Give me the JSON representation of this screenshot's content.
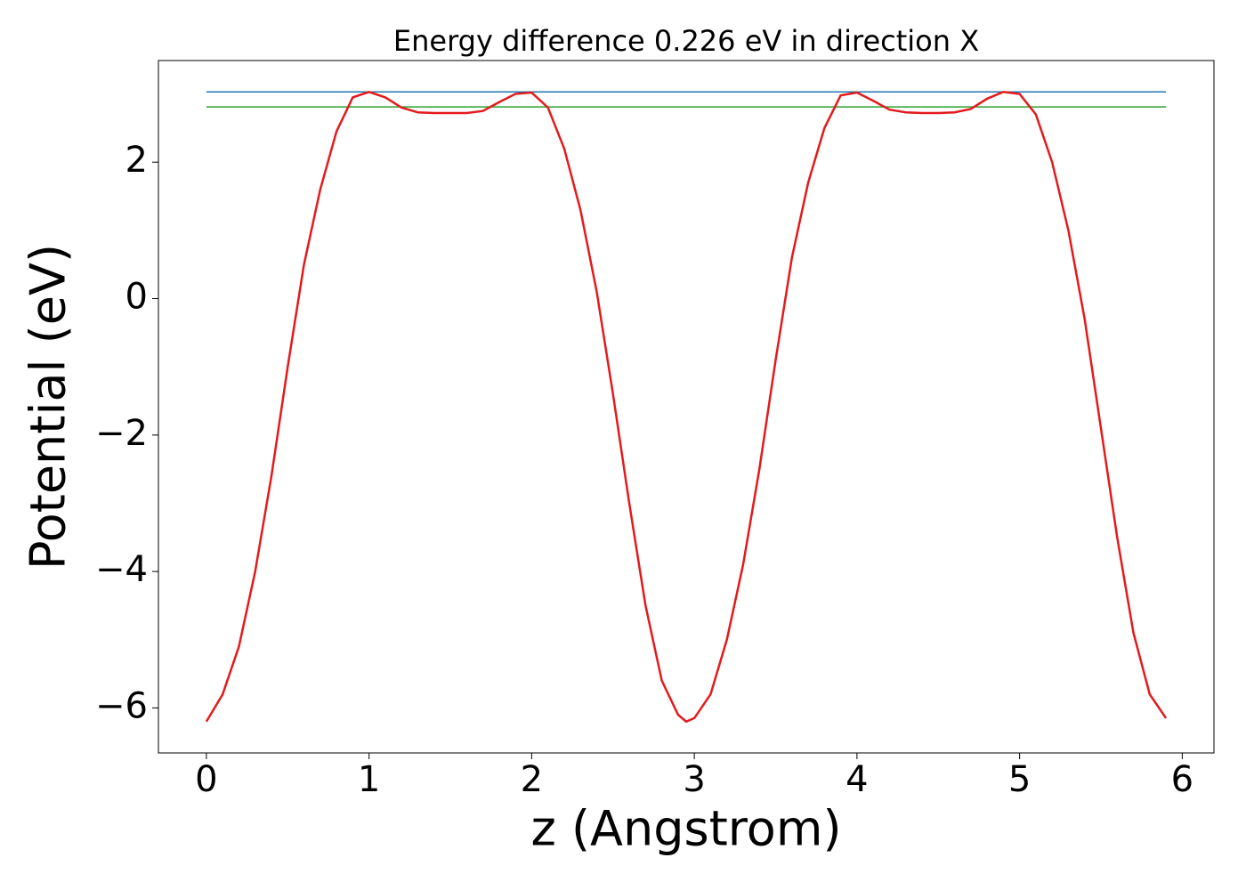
{
  "chart_data": {
    "type": "line",
    "title": "Energy difference 0.226 eV in direction X",
    "xlabel": "z (Angstrom)",
    "ylabel": "Potential (eV)",
    "xlim": [
      -0.295,
      6.195
    ],
    "ylim": [
      -6.66,
      3.49
    ],
    "xticks": [
      0,
      1,
      2,
      3,
      4,
      5,
      6
    ],
    "yticks": [
      {
        "value": -6,
        "label": "−6"
      },
      {
        "value": -4,
        "label": "−4"
      },
      {
        "value": -2,
        "label": "−2"
      },
      0,
      2
    ],
    "grid": false,
    "series": [
      {
        "color": "#e41a1c",
        "x": [
          0,
          0.1,
          0.2,
          0.3,
          0.4,
          0.5,
          0.6,
          0.7,
          0.8,
          0.9,
          1.0,
          1.1,
          1.2,
          1.3,
          1.4,
          1.5,
          1.6,
          1.7,
          1.8,
          1.9,
          2.0,
          2.1,
          2.2,
          2.3,
          2.4,
          2.5,
          2.6,
          2.7,
          2.8,
          2.9,
          2.95,
          3.0,
          3.1,
          3.2,
          3.3,
          3.4,
          3.5,
          3.6,
          3.7,
          3.8,
          3.9,
          4.0,
          4.1,
          4.2,
          4.3,
          4.4,
          4.5,
          4.6,
          4.7,
          4.8,
          4.9,
          5.0,
          5.1,
          5.2,
          5.3,
          5.4,
          5.5,
          5.6,
          5.7,
          5.8,
          5.9
        ],
        "values": [
          -6.2,
          -5.8,
          -5.1,
          -4.0,
          -2.6,
          -1.0,
          0.5,
          1.6,
          2.45,
          2.95,
          3.03,
          2.95,
          2.8,
          2.73,
          2.72,
          2.72,
          2.72,
          2.75,
          2.88,
          3.0,
          3.02,
          2.8,
          2.2,
          1.3,
          0.1,
          -1.4,
          -3.0,
          -4.5,
          -5.6,
          -6.1,
          -6.2,
          -6.15,
          -5.8,
          -5.0,
          -3.9,
          -2.5,
          -0.9,
          0.6,
          1.7,
          2.5,
          2.98,
          3.02,
          2.9,
          2.77,
          2.73,
          2.72,
          2.72,
          2.73,
          2.78,
          2.93,
          3.03,
          3.0,
          2.7,
          2.0,
          1.0,
          -0.3,
          -1.9,
          -3.5,
          -4.9,
          -5.8,
          -6.15
        ]
      },
      {
        "color": "#1f77b4",
        "x": [
          0,
          5.9
        ],
        "values": [
          3.03,
          3.03
        ]
      },
      {
        "color": "#2ca02c",
        "x": [
          0,
          5.9
        ],
        "values": [
          2.81,
          2.81
        ]
      }
    ]
  }
}
